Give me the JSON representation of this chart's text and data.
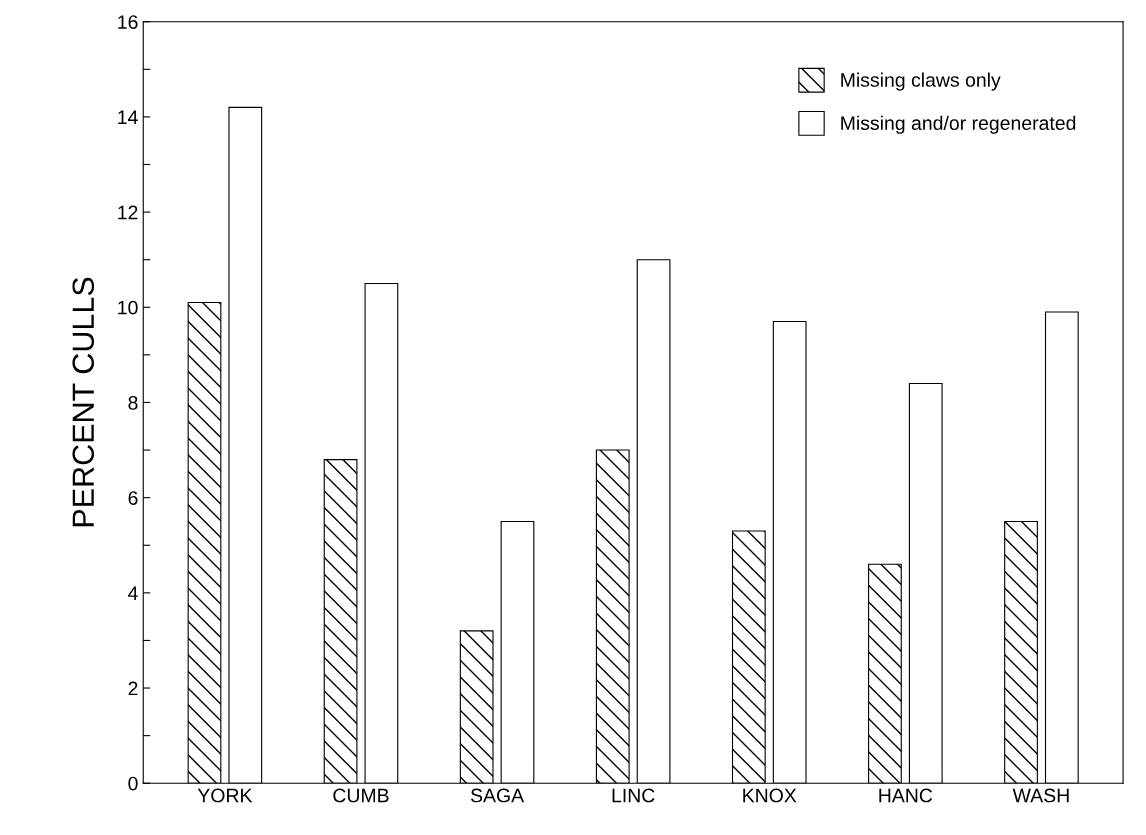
{
  "chart_data": {
    "type": "bar",
    "ylabel": "PERCENT CULLS",
    "categories": [
      "YORK",
      "CUMB",
      "SAGA",
      "LINC",
      "KNOX",
      "HANC",
      "WASH"
    ],
    "series": [
      {
        "name": "Missing claws only",
        "color": "#000000",
        "values": [
          10.1,
          6.8,
          3.2,
          7.0,
          5.3,
          4.6,
          5.5
        ]
      },
      {
        "name": "Missing and/or regenerated",
        "color": "#ffffff",
        "values": [
          14.2,
          10.5,
          5.5,
          11.0,
          9.7,
          8.4,
          9.9
        ]
      }
    ],
    "ylim": [
      0,
      16
    ],
    "yticks": [
      0,
      {
        "value": 1,
        "label": null
      },
      2,
      {
        "value": 3,
        "label": null
      },
      4,
      {
        "value": 5,
        "label": null
      },
      6,
      {
        "value": 7,
        "label": null
      },
      8,
      {
        "value": 9,
        "label": null
      },
      10,
      {
        "value": 11,
        "label": null
      },
      12,
      {
        "value": 13,
        "label": null
      },
      14,
      {
        "value": 15,
        "label": null
      },
      16
    ],
    "grid": false,
    "legend": "top right"
  }
}
